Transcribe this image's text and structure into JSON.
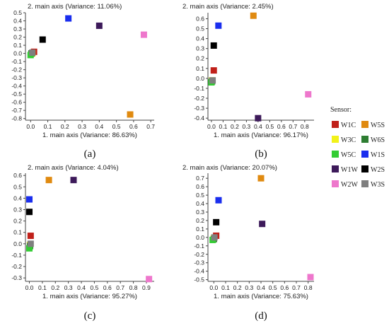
{
  "legend": {
    "title": "Sensor:",
    "items": [
      {
        "id": "W1C",
        "label": "W1C",
        "color": "#c0201a"
      },
      {
        "id": "W5S",
        "label": "W5S",
        "color": "#e08a10"
      },
      {
        "id": "W3C",
        "label": "W3C",
        "color": "#f2f21a"
      },
      {
        "id": "W6S",
        "label": "W6S",
        "color": "#2e7d32"
      },
      {
        "id": "W5C",
        "label": "W5C",
        "color": "#33cc33"
      },
      {
        "id": "W1S",
        "label": "W1S",
        "color": "#1a2eee"
      },
      {
        "id": "W1W",
        "label": "W1W",
        "color": "#3d1a5a"
      },
      {
        "id": "W2S",
        "label": "W2S",
        "color": "#000000"
      },
      {
        "id": "W2W",
        "label": "W2W",
        "color": "#ee77cc"
      },
      {
        "id": "W3S",
        "label": "W3S",
        "color": "#7f7f7f"
      }
    ]
  },
  "chart_data": [
    {
      "type": "scatter",
      "panel": "(a)",
      "title": "2. main axis (Variance: 11.06%)",
      "xlabel": "1. main axis (Variance: 86.63%)",
      "xlim": [
        -0.03,
        0.72
      ],
      "ylim": [
        -0.82,
        0.5
      ],
      "xticks": [
        0.0,
        0.1,
        0.2,
        0.3,
        0.4,
        0.5,
        0.6,
        0.7
      ],
      "yticks": [
        0.5,
        0.4,
        0.3,
        0.2,
        0.1,
        0.0,
        -0.1,
        -0.2,
        -0.3,
        -0.4,
        -0.5,
        -0.6,
        -0.7,
        -0.8
      ],
      "points": [
        {
          "sensor": "W1C",
          "x": 0.02,
          "y": 0.02
        },
        {
          "sensor": "W5S",
          "x": 0.58,
          "y": -0.75
        },
        {
          "sensor": "W3C",
          "x": 0.01,
          "y": 0.0
        },
        {
          "sensor": "W6S",
          "x": 0.005,
          "y": 0.0
        },
        {
          "sensor": "W5C",
          "x": 0.0,
          "y": -0.02
        },
        {
          "sensor": "W1S",
          "x": 0.22,
          "y": 0.43
        },
        {
          "sensor": "W1W",
          "x": 0.4,
          "y": 0.34
        },
        {
          "sensor": "W2S",
          "x": 0.07,
          "y": 0.17
        },
        {
          "sensor": "W2W",
          "x": 0.66,
          "y": 0.23
        },
        {
          "sensor": "W3S",
          "x": 0.01,
          "y": 0.01
        }
      ]
    },
    {
      "type": "scatter",
      "panel": "(b)",
      "title": "2. main axis (Variance: 2.45%)",
      "xlabel": "1. main axis (Variance: 96.17%)",
      "xlim": [
        -0.03,
        0.88
      ],
      "ylim": [
        -0.42,
        0.66
      ],
      "xticks": [
        0.0,
        0.1,
        0.2,
        0.3,
        0.4,
        0.5,
        0.6,
        0.7,
        0.8
      ],
      "yticks": [
        0.6,
        0.5,
        0.4,
        0.3,
        0.2,
        0.1,
        0.0,
        -0.1,
        -0.2,
        -0.3,
        -0.4
      ],
      "points": [
        {
          "sensor": "W1C",
          "x": 0.02,
          "y": 0.08
        },
        {
          "sensor": "W5S",
          "x": 0.36,
          "y": 0.63
        },
        {
          "sensor": "W3C",
          "x": 0.005,
          "y": -0.02
        },
        {
          "sensor": "W6S",
          "x": 0.005,
          "y": -0.03
        },
        {
          "sensor": "W5C",
          "x": 0.0,
          "y": -0.04
        },
        {
          "sensor": "W1S",
          "x": 0.06,
          "y": 0.53
        },
        {
          "sensor": "W1W",
          "x": 0.4,
          "y": -0.4
        },
        {
          "sensor": "W2S",
          "x": 0.02,
          "y": 0.33
        },
        {
          "sensor": "W2W",
          "x": 0.83,
          "y": -0.16
        },
        {
          "sensor": "W3S",
          "x": 0.01,
          "y": -0.02
        }
      ]
    },
    {
      "type": "scatter",
      "panel": "(c)",
      "title": "2. main axis (Variance: 4.04%)",
      "xlabel": "1. main axis (Variance: 95.27%)",
      "xlim": [
        -0.03,
        0.96
      ],
      "ylim": [
        -0.33,
        0.62
      ],
      "xticks": [
        0.0,
        0.1,
        0.2,
        0.3,
        0.4,
        0.5,
        0.6,
        0.7,
        0.8,
        0.9
      ],
      "yticks": [
        0.6,
        0.5,
        0.4,
        0.3,
        0.2,
        0.1,
        0.0,
        -0.1,
        -0.2,
        -0.3
      ],
      "points": [
        {
          "sensor": "W1C",
          "x": 0.01,
          "y": 0.07
        },
        {
          "sensor": "W5S",
          "x": 0.15,
          "y": 0.56
        },
        {
          "sensor": "W3C",
          "x": 0.005,
          "y": -0.01
        },
        {
          "sensor": "W6S",
          "x": 0.005,
          "y": -0.02
        },
        {
          "sensor": "W5C",
          "x": 0.0,
          "y": -0.04
        },
        {
          "sensor": "W1S",
          "x": 0.0,
          "y": 0.39
        },
        {
          "sensor": "W1W",
          "x": 0.34,
          "y": 0.56
        },
        {
          "sensor": "W2S",
          "x": 0.0,
          "y": 0.28
        },
        {
          "sensor": "W2W",
          "x": 0.92,
          "y": -0.31
        },
        {
          "sensor": "W3S",
          "x": 0.01,
          "y": 0.0
        }
      ]
    },
    {
      "type": "scatter",
      "panel": "(d)",
      "title": "2. main axis (Variance: 20.07%)",
      "xlabel": "1. main axis (Variance: 75.63%)",
      "xlim": [
        -0.05,
        0.85
      ],
      "ylim": [
        -0.52,
        0.76
      ],
      "xticks": [
        0.0,
        0.1,
        0.2,
        0.3,
        0.4,
        0.5,
        0.6,
        0.7,
        0.8
      ],
      "yticks": [
        0.7,
        0.6,
        0.5,
        0.4,
        0.3,
        0.2,
        0.1,
        0.0,
        -0.1,
        -0.2,
        -0.3,
        -0.4,
        -0.5
      ],
      "points": [
        {
          "sensor": "W1C",
          "x": 0.02,
          "y": 0.02
        },
        {
          "sensor": "W5S",
          "x": 0.4,
          "y": 0.7
        },
        {
          "sensor": "W3C",
          "x": 0.0,
          "y": -0.01
        },
        {
          "sensor": "W6S",
          "x": 0.0,
          "y": -0.02
        },
        {
          "sensor": "W5C",
          "x": -0.01,
          "y": -0.03
        },
        {
          "sensor": "W1S",
          "x": 0.04,
          "y": 0.44
        },
        {
          "sensor": "W1W",
          "x": 0.41,
          "y": 0.16
        },
        {
          "sensor": "W2S",
          "x": 0.02,
          "y": 0.18
        },
        {
          "sensor": "W2W",
          "x": 0.82,
          "y": -0.47
        },
        {
          "sensor": "W3S",
          "x": 0.005,
          "y": 0.0
        }
      ]
    }
  ]
}
